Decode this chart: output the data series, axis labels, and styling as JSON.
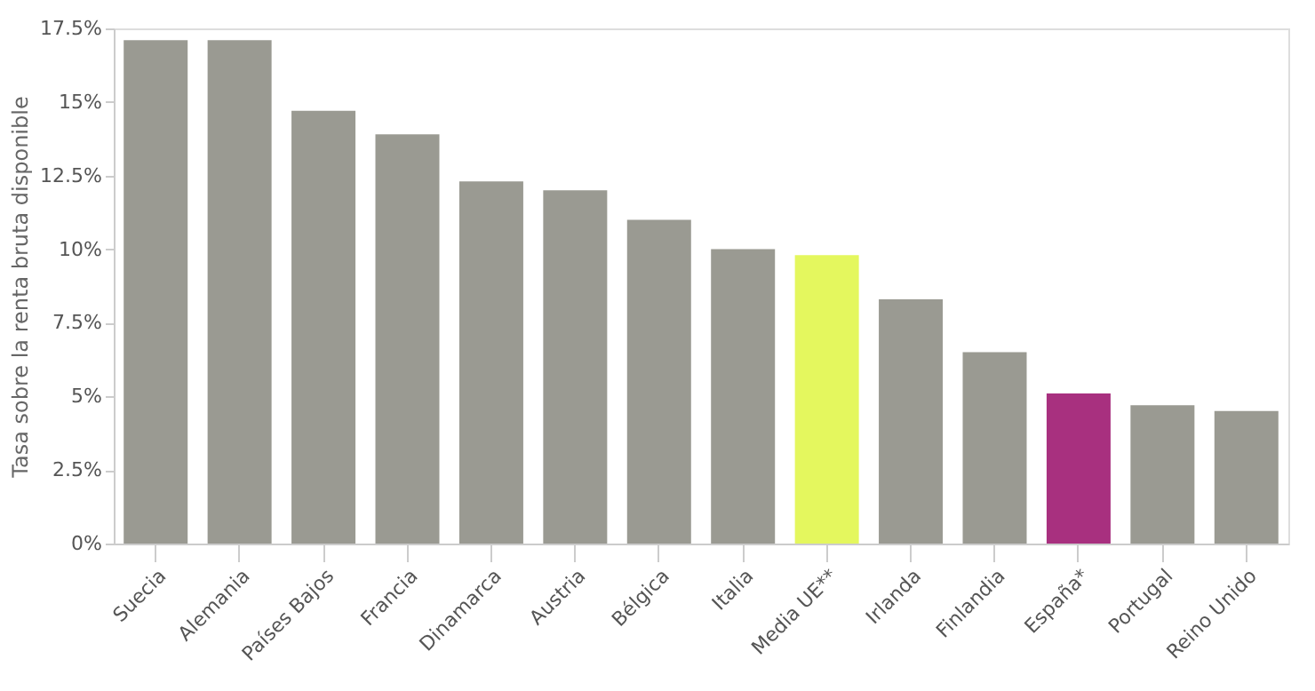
{
  "chart_data": {
    "type": "bar",
    "ylabel": "Tasa sobre la renta bruta disponible",
    "categories": [
      "Suecia",
      "Alemania",
      "Países Bajos",
      "Francia",
      "Dinamarca",
      "Austria",
      "Bélgica",
      "Italia",
      "Media UE**",
      "Irlanda",
      "Finlandia",
      "España*",
      "Portugal",
      "Reino Unido"
    ],
    "values": [
      17.1,
      17.1,
      14.7,
      13.9,
      12.3,
      12.0,
      11.0,
      10.0,
      9.8,
      8.3,
      6.5,
      5.1,
      4.7,
      4.5
    ],
    "colors": [
      "#9a9a92",
      "#9a9a92",
      "#9a9a92",
      "#9a9a92",
      "#9a9a92",
      "#9a9a92",
      "#9a9a92",
      "#9a9a92",
      "#e4f75e",
      "#9a9a92",
      "#9a9a92",
      "#a8307f",
      "#9a9a92",
      "#9a9a92"
    ],
    "ylim": [
      0,
      17.5
    ],
    "yticks": [
      {
        "value": 0,
        "label": "0%"
      },
      {
        "value": 2.5,
        "label": "2.5%"
      },
      {
        "value": 5,
        "label": "5%"
      },
      {
        "value": 7.5,
        "label": "7.5%"
      },
      {
        "value": 10,
        "label": "10%"
      },
      {
        "value": 12.5,
        "label": "12.5%"
      },
      {
        "value": 15,
        "label": "15%"
      },
      {
        "value": 17.5,
        "label": "17.5%"
      }
    ],
    "grid": false
  }
}
